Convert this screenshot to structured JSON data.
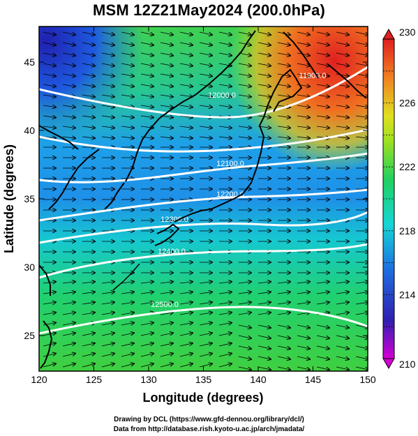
{
  "title": "MSM 12Z21May2024 (200.0hPa)",
  "credits": {
    "line1": "Drawing by DCL (https://www.gfd-dennou.org/library/dcl/)",
    "line2": "Data from http://database.rish.kyoto-u.ac.jp/arch/jmadata/"
  },
  "map": {
    "xlabel": "Longitude (degrees)",
    "ylabel": "Latitude  (degrees)",
    "x_ticks": [
      "120",
      "125",
      "130",
      "135",
      "140",
      "145",
      "150"
    ],
    "y_ticks": [
      "25",
      "30",
      "35",
      "40",
      "45"
    ],
    "lon_range": [
      120,
      150
    ],
    "lat_range": [
      22.4,
      47.6
    ],
    "grid": false
  },
  "colorbar": {
    "min": 210,
    "max": 230,
    "labels": [
      "230",
      "226",
      "222",
      "218",
      "214",
      "210"
    ],
    "stops": [
      "#d400d4",
      "#2020c0",
      "#1e6fe0",
      "#16d6d6",
      "#20d060",
      "#9de020",
      "#e0e020",
      "#f08020",
      "#e02020"
    ]
  },
  "contours": [
    {
      "label": "11900.0"
    },
    {
      "label": "12000.0"
    },
    {
      "label": "12100.0"
    },
    {
      "label": "12200.0"
    },
    {
      "label": "12300.0"
    },
    {
      "label": "12400.0"
    },
    {
      "label": "12500.0"
    }
  ],
  "colors": {
    "contour": "#ffffff",
    "coast": "#000000",
    "vector": "#000000"
  }
}
